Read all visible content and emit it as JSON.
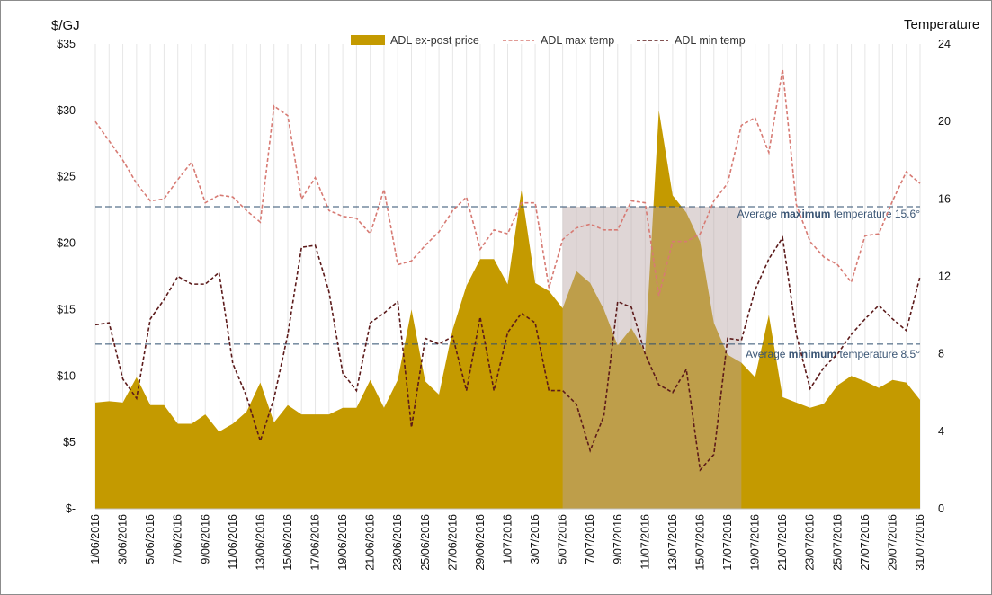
{
  "chart_data": {
    "type": "area",
    "title": "",
    "y_left_label": "$/GJ",
    "y_right_label": "Temperature",
    "y_left_ticks": [
      "$-",
      "$5",
      "$10",
      "$15",
      "$20",
      "$25",
      "$30",
      "$35"
    ],
    "y_left_range": [
      0,
      35
    ],
    "y_right_ticks": [
      "0",
      "4",
      "8",
      "12",
      "16",
      "20",
      "24"
    ],
    "y_right_range": [
      0,
      24
    ],
    "legend_position": "top-center",
    "grid": "vertical gridlines",
    "x_dates": [
      "1/06/2016",
      "2/06/2016",
      "3/06/2016",
      "4/06/2016",
      "5/06/2016",
      "6/06/2016",
      "7/06/2016",
      "8/06/2016",
      "9/06/2016",
      "10/06/2016",
      "11/06/2016",
      "12/06/2016",
      "13/06/2016",
      "14/06/2016",
      "15/06/2016",
      "16/06/2016",
      "17/06/2016",
      "18/06/2016",
      "19/06/2016",
      "20/06/2016",
      "21/06/2016",
      "22/06/2016",
      "23/06/2016",
      "24/06/2016",
      "25/06/2016",
      "26/06/2016",
      "27/06/2016",
      "28/06/2016",
      "29/06/2016",
      "30/06/2016",
      "1/07/2016",
      "2/07/2016",
      "3/07/2016",
      "4/07/2016",
      "5/07/2016",
      "6/07/2016",
      "7/07/2016",
      "8/07/2016",
      "9/07/2016",
      "10/07/2016",
      "11/07/2016",
      "12/07/2016",
      "13/07/2016",
      "14/07/2016",
      "15/07/2016",
      "16/07/2016",
      "17/07/2016",
      "18/07/2016",
      "19/07/2016",
      "20/07/2016",
      "21/07/2016",
      "22/07/2016",
      "23/07/2016",
      "24/07/2016",
      "25/07/2016",
      "26/07/2016",
      "27/07/2016",
      "28/07/2016",
      "29/07/2016",
      "30/07/2016",
      "31/07/2016"
    ],
    "x_tick_labels": [
      "1/06/2016",
      "3/06/2016",
      "5/06/2016",
      "7/06/2016",
      "9/06/2016",
      "11/06/2016",
      "13/06/2016",
      "15/06/2016",
      "17/06/2016",
      "19/06/2016",
      "21/06/2016",
      "23/06/2016",
      "25/06/2016",
      "27/06/2016",
      "29/06/2016",
      "1/07/2016",
      "3/07/2016",
      "5/07/2016",
      "7/07/2016",
      "9/07/2016",
      "11/07/2016",
      "13/07/2016",
      "15/07/2016",
      "17/07/2016",
      "19/07/2016",
      "21/07/2016",
      "23/07/2016",
      "25/07/2016",
      "27/07/2016",
      "29/07/2016",
      "31/07/2016"
    ],
    "series": [
      {
        "name": "ADL ex-post price",
        "kind": "area",
        "axis": "left",
        "color": "#c49a00",
        "values": [
          8.0,
          8.1,
          8.0,
          9.9,
          7.8,
          7.8,
          6.4,
          6.4,
          7.1,
          5.8,
          6.4,
          7.3,
          9.5,
          6.5,
          7.8,
          7.1,
          7.1,
          7.1,
          7.6,
          7.6,
          9.7,
          7.6,
          9.7,
          15.0,
          9.6,
          8.6,
          13.5,
          16.8,
          18.8,
          18.8,
          16.9,
          24.0,
          17.0,
          16.4,
          15.1,
          17.9,
          17.0,
          15.0,
          12.3,
          13.6,
          11.8,
          30.0,
          23.6,
          22.3,
          20.1,
          14.0,
          11.6,
          11.0,
          9.9,
          14.6,
          8.4,
          8.0,
          7.6,
          7.9,
          9.3,
          10.0,
          9.6,
          9.1,
          9.7,
          9.5,
          8.2
        ]
      },
      {
        "name": "ADL max temp",
        "kind": "line",
        "axis": "right",
        "color": "#d77a73",
        "values": [
          20.0,
          19.0,
          18.0,
          16.8,
          15.9,
          16.0,
          17.0,
          17.9,
          15.8,
          16.2,
          16.1,
          15.4,
          14.8,
          20.8,
          20.3,
          16.0,
          17.1,
          15.4,
          15.1,
          15.0,
          14.2,
          16.5,
          12.6,
          12.8,
          13.6,
          14.3,
          15.4,
          16.1,
          13.4,
          14.4,
          14.2,
          15.8,
          15.8,
          11.4,
          13.9,
          14.5,
          14.7,
          14.4,
          14.4,
          15.9,
          15.8,
          11.0,
          13.8,
          13.8,
          14.2,
          15.9,
          16.8,
          19.8,
          20.2,
          18.4,
          22.7,
          15.7,
          13.8,
          13.0,
          12.6,
          11.7,
          14.1,
          14.2,
          15.9,
          17.4,
          16.8
        ]
      },
      {
        "name": "ADL min temp",
        "kind": "line",
        "axis": "right",
        "color": "#5c1a1a",
        "values": [
          9.5,
          9.6,
          6.7,
          5.7,
          9.8,
          10.8,
          12.0,
          11.6,
          11.6,
          12.2,
          7.5,
          5.8,
          3.5,
          5.7,
          9.0,
          13.5,
          13.6,
          11.2,
          7.0,
          6.1,
          9.6,
          10.1,
          10.7,
          4.2,
          8.8,
          8.5,
          8.9,
          6.1,
          9.9,
          6.1,
          9.1,
          10.1,
          9.6,
          6.1,
          6.1,
          5.4,
          3.0,
          4.8,
          10.7,
          10.4,
          8.0,
          6.4,
          6.0,
          7.2,
          2.0,
          2.8,
          8.8,
          8.7,
          11.3,
          12.9,
          14.0,
          9.0,
          6.2,
          7.3,
          8.0,
          9.0,
          9.8,
          10.5,
          9.8,
          9.2,
          12.0
        ]
      }
    ],
    "reference_lines": [
      {
        "label_prefix": "Average ",
        "label_bold": "maximum",
        "label_suffix": " temperature 15.6°",
        "value": 15.6,
        "axis": "right",
        "color": "#2f4f6f"
      },
      {
        "label_prefix": "Average ",
        "label_bold": "minimum",
        "label_suffix": " temperature 8.5°",
        "value": 8.5,
        "axis": "right",
        "color": "#2f4f6f"
      }
    ],
    "highlight_band": {
      "start_date": "5/07/2016",
      "end_date": "18/07/2016",
      "color": "#b8a3a3"
    }
  }
}
